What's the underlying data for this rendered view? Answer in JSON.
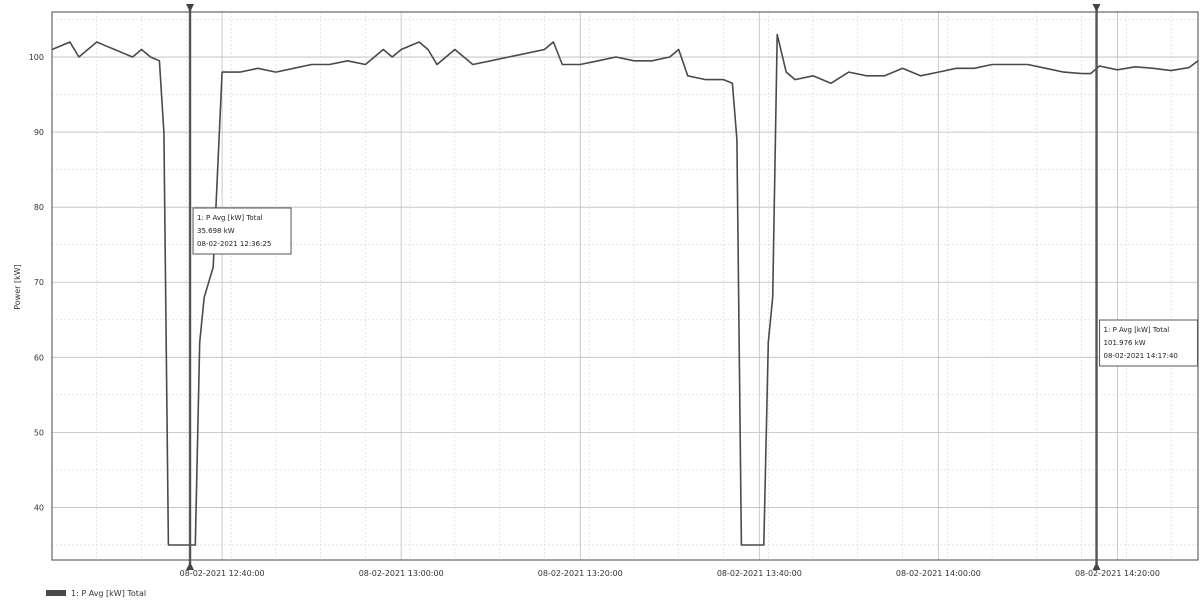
{
  "chart_data": {
    "type": "line",
    "ylabel": "Power [kW]",
    "ylim": [
      33,
      106
    ],
    "xlim": [
      "08-02-2021 12:21:00",
      "08-02-2021 14:29:00"
    ],
    "y_ticks": [
      40,
      50,
      60,
      70,
      80,
      90,
      100
    ],
    "x_ticks": [
      "08-02-2021 12:40:00",
      "08-02-2021 13:00:00",
      "08-02-2021 13:20:00",
      "08-02-2021 13:40:00",
      "08-02-2021 14:00:00",
      "08-02-2021 14:20:00"
    ],
    "grid": true,
    "legend": "bottom-left",
    "series": [
      {
        "name": "1: P Avg [kW] Total",
        "color": "#4a4a4a",
        "x": [
          "08-02-2021 12:21:00",
          "08-02-2021 12:22:00",
          "08-02-2021 12:23:00",
          "08-02-2021 12:24:00",
          "08-02-2021 12:25:00",
          "08-02-2021 12:26:00",
          "08-02-2021 12:27:00",
          "08-02-2021 12:28:00",
          "08-02-2021 12:29:00",
          "08-02-2021 12:30:00",
          "08-02-2021 12:31:00",
          "08-02-2021 12:32:00",
          "08-02-2021 12:33:00",
          "08-02-2021 12:33:30",
          "08-02-2021 12:34:00",
          "08-02-2021 12:34:30",
          "08-02-2021 12:35:00",
          "08-02-2021 12:36:00",
          "08-02-2021 12:36:30",
          "08-02-2021 12:37:00",
          "08-02-2021 12:37:30",
          "08-02-2021 12:38:00",
          "08-02-2021 12:39:00",
          "08-02-2021 12:40:00",
          "08-02-2021 12:42:00",
          "08-02-2021 12:44:00",
          "08-02-2021 12:46:00",
          "08-02-2021 12:48:00",
          "08-02-2021 12:50:00",
          "08-02-2021 12:52:00",
          "08-02-2021 12:54:00",
          "08-02-2021 12:56:00",
          "08-02-2021 12:58:00",
          "08-02-2021 12:59:00",
          "08-02-2021 13:00:00",
          "08-02-2021 13:02:00",
          "08-02-2021 13:03:00",
          "08-02-2021 13:04:00",
          "08-02-2021 13:06:00",
          "08-02-2021 13:08:00",
          "08-02-2021 13:10:00",
          "08-02-2021 13:12:00",
          "08-02-2021 13:14:00",
          "08-02-2021 13:16:00",
          "08-02-2021 13:17:00",
          "08-02-2021 13:18:00",
          "08-02-2021 13:20:00",
          "08-02-2021 13:22:00",
          "08-02-2021 13:24:00",
          "08-02-2021 13:26:00",
          "08-02-2021 13:28:00",
          "08-02-2021 13:30:00",
          "08-02-2021 13:31:00",
          "08-02-2021 13:32:00",
          "08-02-2021 13:34:00",
          "08-02-2021 13:36:00",
          "08-02-2021 13:37:00",
          "08-02-2021 13:37:30",
          "08-02-2021 13:38:00",
          "08-02-2021 13:39:00",
          "08-02-2021 13:40:00",
          "08-02-2021 13:40:30",
          "08-02-2021 13:41:00",
          "08-02-2021 13:41:30",
          "08-02-2021 13:42:00",
          "08-02-2021 13:43:00",
          "08-02-2021 13:44:00",
          "08-02-2021 13:46:00",
          "08-02-2021 13:48:00",
          "08-02-2021 13:50:00",
          "08-02-2021 13:52:00",
          "08-02-2021 13:54:00",
          "08-02-2021 13:56:00",
          "08-02-2021 13:58:00",
          "08-02-2021 14:00:00",
          "08-02-2021 14:02:00",
          "08-02-2021 14:04:00",
          "08-02-2021 14:06:00",
          "08-02-2021 14:08:00",
          "08-02-2021 14:10:00",
          "08-02-2021 14:12:00",
          "08-02-2021 14:14:00",
          "08-02-2021 14:16:00",
          "08-02-2021 14:17:00",
          "08-02-2021 14:18:00",
          "08-02-2021 14:20:00",
          "08-02-2021 14:22:00",
          "08-02-2021 14:24:00",
          "08-02-2021 14:26:00",
          "08-02-2021 14:28:00",
          "08-02-2021 14:29:00"
        ],
        "y": [
          101,
          101.5,
          102,
          100,
          101,
          102,
          101.5,
          101,
          100.5,
          100,
          101,
          100,
          99.5,
          90,
          35,
          35,
          35,
          35,
          35,
          35,
          62,
          68,
          72,
          98,
          98,
          98.5,
          98,
          98.5,
          99,
          99,
          99.5,
          99,
          101,
          100,
          101,
          102,
          101,
          99,
          101,
          99,
          99.5,
          100,
          100.5,
          101,
          102,
          99,
          99,
          99.5,
          100,
          99.5,
          99.5,
          100,
          101,
          97.5,
          97,
          97,
          96.5,
          89,
          35,
          35,
          35,
          35,
          62,
          68,
          103,
          98,
          97,
          97.5,
          96.5,
          98,
          97.5,
          97.5,
          98.5,
          97.5,
          98,
          98.5,
          98.5,
          99,
          99,
          99,
          98.5,
          98,
          97.8,
          97.8,
          98.8,
          98.3,
          98.7,
          98.5,
          98.2,
          98.6,
          99.5
        ]
      }
    ],
    "annotations": [
      {
        "line1": "1: P Avg [kW] Total",
        "line2": "35.698 kW",
        "line3": "08-02-2021 12:36:25",
        "x": "08-02-2021 12:36:25",
        "y": 35.698
      },
      {
        "line1": "1: P Avg [kW] Total",
        "line2": "101.976 kW",
        "line3": "08-02-2021 14:17:40",
        "x": "08-02-2021 14:17:40",
        "y": 101.976
      }
    ]
  }
}
